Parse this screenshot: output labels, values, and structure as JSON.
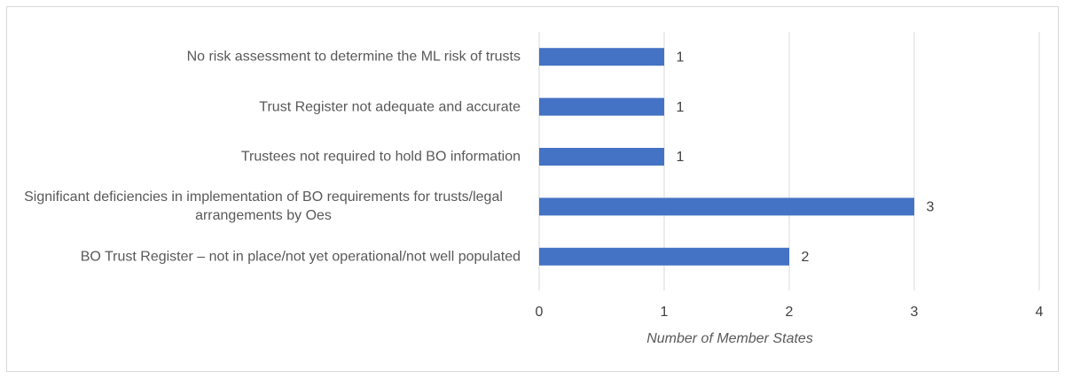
{
  "chart_data": {
    "type": "hbar",
    "categories": [
      "No risk assessment to determine the ML risk of trusts",
      "Trust Register not adequate and accurate",
      "Trustees not required to hold BO information",
      "Significant deficiencies in implementation of BO requirements for trusts/legal arrangements by Oes",
      "BO Trust Register – not in place/not yet operational/not well populated"
    ],
    "values": [
      1,
      1,
      1,
      3,
      2
    ],
    "color": "#4472c4",
    "xlim": [
      0,
      4
    ],
    "xticks": [
      0,
      1,
      2,
      3,
      4
    ],
    "xlabel": "Number of Member States",
    "grid": true
  }
}
